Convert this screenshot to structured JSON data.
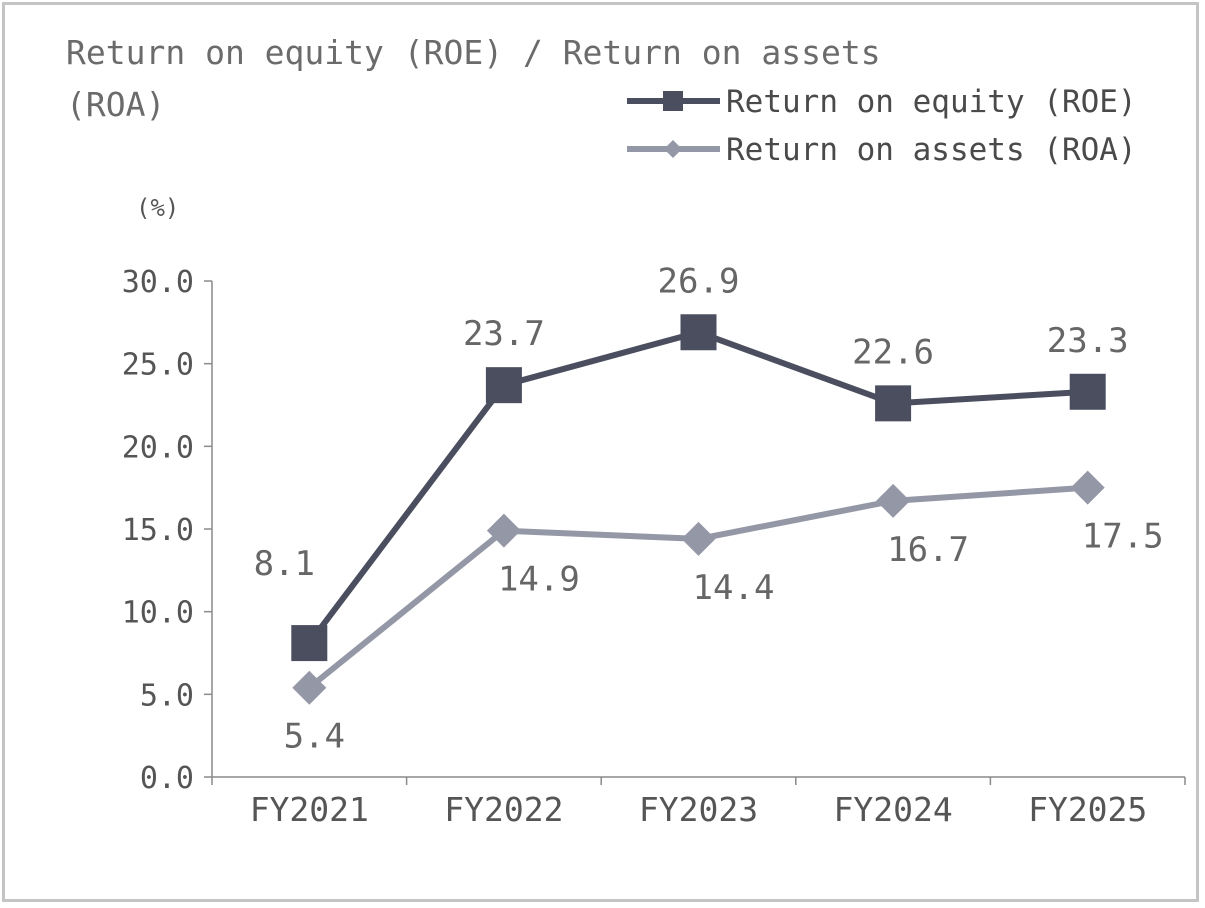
{
  "chart_data": {
    "type": "line",
    "title_line1": "Return on equity (ROE) / Return on assets",
    "title_line2": "(ROA)",
    "ylabel": "(%)",
    "categories": [
      "FY2021",
      "FY2022",
      "FY2023",
      "FY2024",
      "FY2025"
    ],
    "ylim": [
      0,
      30
    ],
    "yticks": [
      "0.0",
      "5.0",
      "10.0",
      "15.0",
      "20.0",
      "25.0",
      "30.0"
    ],
    "grid": false,
    "legend_position": "top-right",
    "series": [
      {
        "name": "Return on equity (ROE)",
        "values": [
          8.1,
          23.7,
          26.9,
          22.6,
          23.3
        ],
        "labels": [
          "8.1",
          "23.7",
          "26.9",
          "22.6",
          "23.3"
        ],
        "color": "#4a4e5f",
        "marker": "square-icon"
      },
      {
        "name": "Return on assets (ROA)",
        "values": [
          5.4,
          14.9,
          14.4,
          16.7,
          17.5
        ],
        "labels": [
          "5.4",
          "14.9",
          "14.4",
          "16.7",
          "17.5"
        ],
        "color": "#9497a6",
        "marker": "diamond-icon"
      }
    ]
  }
}
